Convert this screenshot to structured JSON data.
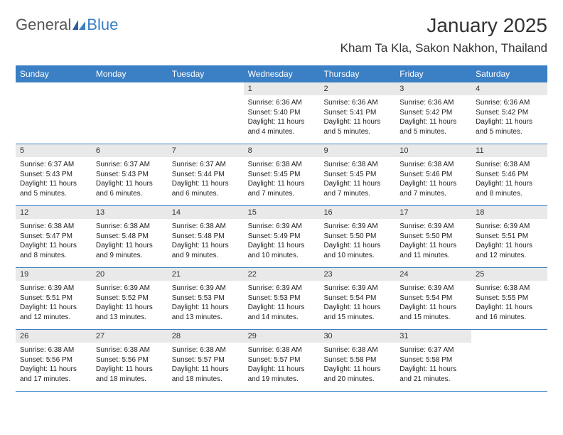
{
  "logo": {
    "text_general": "General",
    "text_blue": "Blue"
  },
  "header": {
    "month_title": "January 2025",
    "location": "Kham Ta Kla, Sakon Nakhon, Thailand"
  },
  "colors": {
    "header_bg": "#3b7fc4",
    "daynum_bg": "#e9e9e9",
    "text": "#333333",
    "border": "#3b7fc4"
  },
  "day_names": [
    "Sunday",
    "Monday",
    "Tuesday",
    "Wednesday",
    "Thursday",
    "Friday",
    "Saturday"
  ],
  "weeks": [
    [
      {
        "n": "",
        "sr": "",
        "ss": "",
        "dl": "",
        "empty": true
      },
      {
        "n": "",
        "sr": "",
        "ss": "",
        "dl": "",
        "empty": true
      },
      {
        "n": "",
        "sr": "",
        "ss": "",
        "dl": "",
        "empty": true
      },
      {
        "n": "1",
        "sr": "Sunrise: 6:36 AM",
        "ss": "Sunset: 5:40 PM",
        "dl": "Daylight: 11 hours and 4 minutes."
      },
      {
        "n": "2",
        "sr": "Sunrise: 6:36 AM",
        "ss": "Sunset: 5:41 PM",
        "dl": "Daylight: 11 hours and 5 minutes."
      },
      {
        "n": "3",
        "sr": "Sunrise: 6:36 AM",
        "ss": "Sunset: 5:42 PM",
        "dl": "Daylight: 11 hours and 5 minutes."
      },
      {
        "n": "4",
        "sr": "Sunrise: 6:36 AM",
        "ss": "Sunset: 5:42 PM",
        "dl": "Daylight: 11 hours and 5 minutes."
      }
    ],
    [
      {
        "n": "5",
        "sr": "Sunrise: 6:37 AM",
        "ss": "Sunset: 5:43 PM",
        "dl": "Daylight: 11 hours and 5 minutes."
      },
      {
        "n": "6",
        "sr": "Sunrise: 6:37 AM",
        "ss": "Sunset: 5:43 PM",
        "dl": "Daylight: 11 hours and 6 minutes."
      },
      {
        "n": "7",
        "sr": "Sunrise: 6:37 AM",
        "ss": "Sunset: 5:44 PM",
        "dl": "Daylight: 11 hours and 6 minutes."
      },
      {
        "n": "8",
        "sr": "Sunrise: 6:38 AM",
        "ss": "Sunset: 5:45 PM",
        "dl": "Daylight: 11 hours and 7 minutes."
      },
      {
        "n": "9",
        "sr": "Sunrise: 6:38 AM",
        "ss": "Sunset: 5:45 PM",
        "dl": "Daylight: 11 hours and 7 minutes."
      },
      {
        "n": "10",
        "sr": "Sunrise: 6:38 AM",
        "ss": "Sunset: 5:46 PM",
        "dl": "Daylight: 11 hours and 7 minutes."
      },
      {
        "n": "11",
        "sr": "Sunrise: 6:38 AM",
        "ss": "Sunset: 5:46 PM",
        "dl": "Daylight: 11 hours and 8 minutes."
      }
    ],
    [
      {
        "n": "12",
        "sr": "Sunrise: 6:38 AM",
        "ss": "Sunset: 5:47 PM",
        "dl": "Daylight: 11 hours and 8 minutes."
      },
      {
        "n": "13",
        "sr": "Sunrise: 6:38 AM",
        "ss": "Sunset: 5:48 PM",
        "dl": "Daylight: 11 hours and 9 minutes."
      },
      {
        "n": "14",
        "sr": "Sunrise: 6:38 AM",
        "ss": "Sunset: 5:48 PM",
        "dl": "Daylight: 11 hours and 9 minutes."
      },
      {
        "n": "15",
        "sr": "Sunrise: 6:39 AM",
        "ss": "Sunset: 5:49 PM",
        "dl": "Daylight: 11 hours and 10 minutes."
      },
      {
        "n": "16",
        "sr": "Sunrise: 6:39 AM",
        "ss": "Sunset: 5:50 PM",
        "dl": "Daylight: 11 hours and 10 minutes."
      },
      {
        "n": "17",
        "sr": "Sunrise: 6:39 AM",
        "ss": "Sunset: 5:50 PM",
        "dl": "Daylight: 11 hours and 11 minutes."
      },
      {
        "n": "18",
        "sr": "Sunrise: 6:39 AM",
        "ss": "Sunset: 5:51 PM",
        "dl": "Daylight: 11 hours and 12 minutes."
      }
    ],
    [
      {
        "n": "19",
        "sr": "Sunrise: 6:39 AM",
        "ss": "Sunset: 5:51 PM",
        "dl": "Daylight: 11 hours and 12 minutes."
      },
      {
        "n": "20",
        "sr": "Sunrise: 6:39 AM",
        "ss": "Sunset: 5:52 PM",
        "dl": "Daylight: 11 hours and 13 minutes."
      },
      {
        "n": "21",
        "sr": "Sunrise: 6:39 AM",
        "ss": "Sunset: 5:53 PM",
        "dl": "Daylight: 11 hours and 13 minutes."
      },
      {
        "n": "22",
        "sr": "Sunrise: 6:39 AM",
        "ss": "Sunset: 5:53 PM",
        "dl": "Daylight: 11 hours and 14 minutes."
      },
      {
        "n": "23",
        "sr": "Sunrise: 6:39 AM",
        "ss": "Sunset: 5:54 PM",
        "dl": "Daylight: 11 hours and 15 minutes."
      },
      {
        "n": "24",
        "sr": "Sunrise: 6:39 AM",
        "ss": "Sunset: 5:54 PM",
        "dl": "Daylight: 11 hours and 15 minutes."
      },
      {
        "n": "25",
        "sr": "Sunrise: 6:38 AM",
        "ss": "Sunset: 5:55 PM",
        "dl": "Daylight: 11 hours and 16 minutes."
      }
    ],
    [
      {
        "n": "26",
        "sr": "Sunrise: 6:38 AM",
        "ss": "Sunset: 5:56 PM",
        "dl": "Daylight: 11 hours and 17 minutes."
      },
      {
        "n": "27",
        "sr": "Sunrise: 6:38 AM",
        "ss": "Sunset: 5:56 PM",
        "dl": "Daylight: 11 hours and 18 minutes."
      },
      {
        "n": "28",
        "sr": "Sunrise: 6:38 AM",
        "ss": "Sunset: 5:57 PM",
        "dl": "Daylight: 11 hours and 18 minutes."
      },
      {
        "n": "29",
        "sr": "Sunrise: 6:38 AM",
        "ss": "Sunset: 5:57 PM",
        "dl": "Daylight: 11 hours and 19 minutes."
      },
      {
        "n": "30",
        "sr": "Sunrise: 6:38 AM",
        "ss": "Sunset: 5:58 PM",
        "dl": "Daylight: 11 hours and 20 minutes."
      },
      {
        "n": "31",
        "sr": "Sunrise: 6:37 AM",
        "ss": "Sunset: 5:58 PM",
        "dl": "Daylight: 11 hours and 21 minutes."
      },
      {
        "n": "",
        "sr": "",
        "ss": "",
        "dl": "",
        "empty": true
      }
    ]
  ]
}
